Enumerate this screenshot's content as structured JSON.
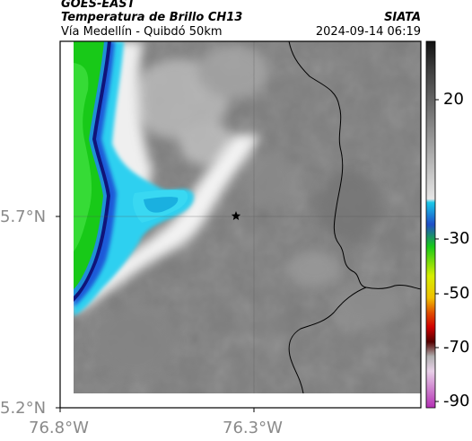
{
  "header": {
    "satellite": "GOES-EAST",
    "product": "Temperatura de Brillo CH13",
    "org": "SIATA",
    "region": "Vía Medellín - Quibdó 50km",
    "datetime": "2024-09-14 06:19"
  },
  "map": {
    "lat_ticks": [
      "5.7°N",
      "5.2°N"
    ],
    "lon_ticks": [
      "76.8°W",
      "76.3°W"
    ],
    "center_marker": "star-marker"
  },
  "colorbar": {
    "labels": [
      "20",
      "-30",
      "-50",
      "-70",
      "-90"
    ],
    "colors": {
      "dark": "#111111",
      "light": "#e6e6e6",
      "cyan": "#19c8e8",
      "blue": "#1f4ec8",
      "green": "#18c918",
      "yellow": "#e6ee00",
      "red": "#e00000",
      "magenta": "#b42fb4"
    }
  }
}
